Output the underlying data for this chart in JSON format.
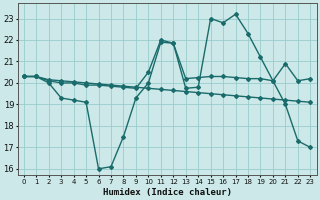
{
  "xlabel": "Humidex (Indice chaleur)",
  "bg_color": "#cce8e8",
  "grid_color": "#99cccc",
  "line_color": "#1a6b6b",
  "ylim": [
    15.7,
    23.7
  ],
  "xlim": [
    -0.5,
    23.5
  ],
  "yticks": [
    16,
    17,
    18,
    19,
    20,
    21,
    22,
    23
  ],
  "xticks": [
    0,
    1,
    2,
    3,
    4,
    5,
    6,
    7,
    8,
    9,
    10,
    11,
    12,
    13,
    14,
    15,
    16,
    17,
    18,
    19,
    20,
    21,
    22,
    23
  ],
  "line1_x": [
    0,
    1,
    2,
    3,
    4,
    5,
    6,
    7,
    8,
    9,
    10,
    11,
    12,
    13,
    14,
    15,
    16,
    17,
    18,
    19,
    20,
    21,
    22,
    23
  ],
  "line1_y": [
    20.3,
    20.3,
    20.15,
    20.1,
    20.05,
    20.0,
    19.95,
    19.9,
    19.85,
    19.8,
    19.75,
    19.7,
    19.65,
    19.6,
    19.55,
    19.5,
    19.45,
    19.4,
    19.35,
    19.3,
    19.25,
    19.2,
    19.15,
    19.1
  ],
  "line2_x": [
    0,
    1,
    2,
    3,
    4,
    5,
    6,
    7,
    8,
    9,
    10,
    11,
    12,
    13,
    14,
    15,
    16,
    17,
    18,
    19,
    20,
    21,
    22,
    23
  ],
  "line2_y": [
    20.3,
    20.3,
    20.0,
    19.3,
    19.2,
    19.1,
    16.0,
    16.1,
    17.5,
    19.3,
    20.0,
    21.9,
    21.85,
    19.75,
    19.8,
    23.0,
    22.8,
    23.2,
    22.3,
    21.2,
    20.1,
    19.0,
    17.3,
    17.0
  ],
  "line3_x": [
    0,
    1,
    2,
    3,
    4,
    5,
    6,
    7,
    8,
    9,
    10,
    11,
    12,
    13,
    14,
    15,
    16,
    17,
    18,
    19,
    20,
    21,
    22,
    23
  ],
  "line3_y": [
    20.3,
    20.3,
    20.1,
    20.0,
    20.0,
    19.9,
    19.9,
    19.85,
    19.8,
    19.75,
    20.5,
    22.0,
    21.85,
    20.2,
    20.25,
    20.3,
    20.3,
    20.25,
    20.2,
    20.2,
    20.1,
    20.9,
    20.1,
    20.2
  ]
}
